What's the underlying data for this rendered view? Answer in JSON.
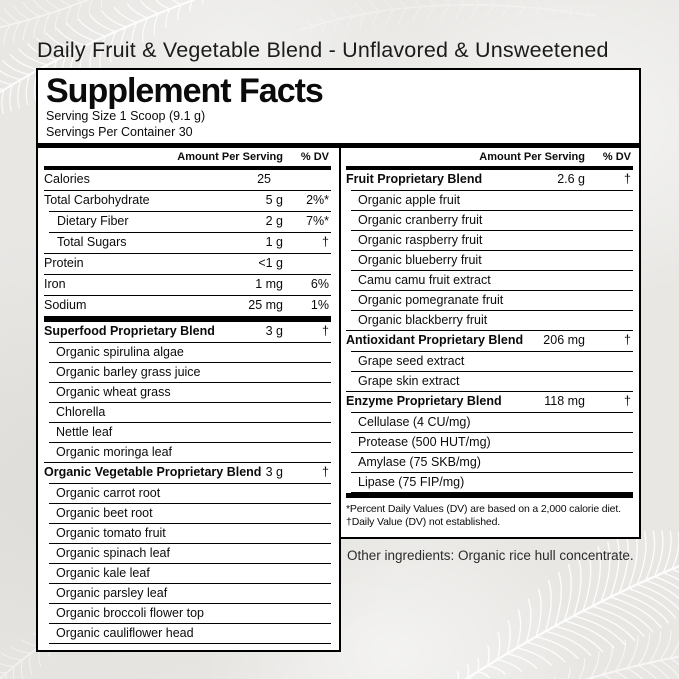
{
  "page": {
    "title": "Daily Fruit & Vegetable Blend - Unflavored & Unsweetened"
  },
  "label": {
    "heading": "Supplement Facts",
    "serving_size": "Serving Size 1 Scoop (9.1 g)",
    "servings_per_container": "Servings Per Container 30",
    "col_headers": {
      "amount": "Amount Per Serving",
      "dv": "% DV"
    },
    "left": {
      "nutrients": [
        {
          "name": "Calories",
          "amount": "25",
          "dv": "",
          "indent": false,
          "pad_amount": true
        },
        {
          "name": "Total Carbohydrate",
          "amount": "5 g",
          "dv": "2%*",
          "indent": false
        },
        {
          "name": "Dietary Fiber",
          "amount": "2 g",
          "dv": "7%*",
          "indent": true
        },
        {
          "name": "Total Sugars",
          "amount": "1 g",
          "dv": "†",
          "indent": true
        },
        {
          "name": "Protein",
          "amount": "<1 g",
          "dv": "",
          "indent": false
        },
        {
          "name": "Iron",
          "amount": "1 mg",
          "dv": "6%",
          "indent": false
        },
        {
          "name": "Sodium",
          "amount": "25 mg",
          "dv": "1%",
          "indent": false
        }
      ],
      "blends": [
        {
          "name": "Superfood Proprietary Blend",
          "amount": "3 g",
          "dv": "†",
          "items": [
            "Organic spirulina algae",
            "Organic barley grass juice",
            "Organic wheat grass",
            "Chlorella",
            "Nettle leaf",
            "Organic moringa leaf"
          ]
        },
        {
          "name": "Organic Vegetable Proprietary Blend",
          "amount": "3 g",
          "dv": "†",
          "items": [
            "Organic carrot root",
            "Organic beet root",
            "Organic tomato fruit",
            "Organic spinach leaf",
            "Organic kale leaf",
            "Organic parsley leaf",
            "Organic broccoli flower top",
            "Organic cauliflower head"
          ]
        }
      ]
    },
    "right": {
      "blends": [
        {
          "name": "Fruit Proprietary Blend",
          "amount": "2.6 g",
          "dv": "†",
          "items": [
            "Organic apple fruit",
            "Organic cranberry fruit",
            "Organic raspberry fruit",
            "Organic blueberry fruit",
            "Camu camu fruit extract",
            "Organic pomegranate fruit",
            "Organic blackberry fruit"
          ]
        },
        {
          "name": "Antioxidant Proprietary Blend",
          "amount": "206 mg",
          "dv": "†",
          "items": [
            "Grape seed extract",
            "Grape skin extract"
          ]
        },
        {
          "name": "Enzyme Proprietary Blend",
          "amount": "118 mg",
          "dv": "†",
          "items": [
            "Cellulase (4 CU/mg)",
            "Protease (500 HUT/mg)",
            "Amylase (75 SKB/mg)",
            "Lipase (75 FIP/mg)"
          ]
        }
      ],
      "footnotes": [
        "*Percent Daily Values (DV) are based on a 2,000 calorie diet.",
        "†Daily Value (DV) not established."
      ]
    },
    "other_ingredients": "Other ingredients: Organic rice hull concentrate."
  },
  "decorations": [
    "feather-top-left-icon",
    "feather-top-center-icon",
    "palm-frond-bottom-right-icon",
    "palm-frond-bottom-left-icon"
  ],
  "colors": {
    "background": "#e8e7e4",
    "label_background": "#ffffff",
    "text": "#0b0b0b",
    "rule": "#000000",
    "decoration": "#ffffff"
  }
}
